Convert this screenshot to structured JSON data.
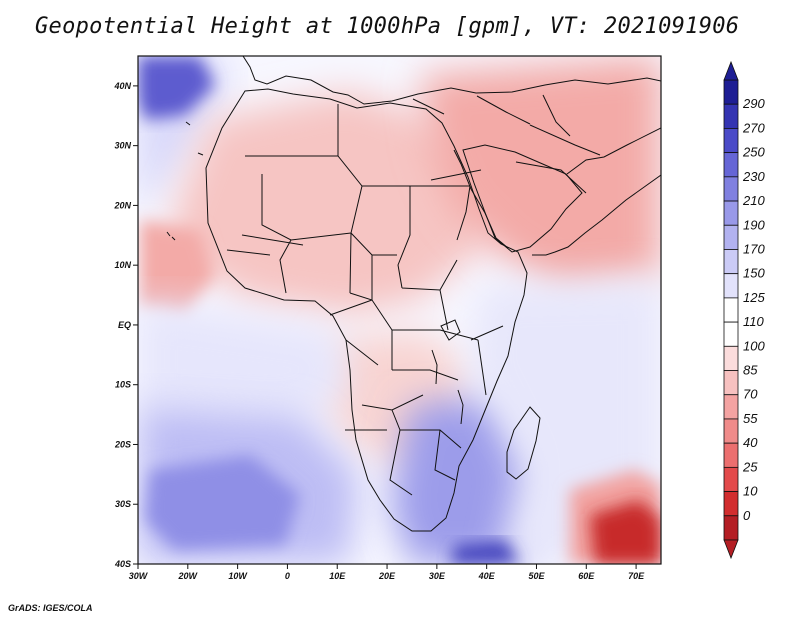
{
  "title": "Geopotential Height at 1000hPa [gpm], VT: 2021091906",
  "footer": "GrADS: IGES/COLA",
  "map": {
    "variable": "Geopotential Height",
    "level": "1000hPa",
    "units": "gpm",
    "valid_time": "2021091906",
    "lon_range": [
      -30,
      75
    ],
    "lat_range": [
      -40,
      45
    ],
    "lon_ticks": [
      {
        "value": -30,
        "label": "30W"
      },
      {
        "value": -20,
        "label": "20W"
      },
      {
        "value": -10,
        "label": "10W"
      },
      {
        "value": 0,
        "label": "0"
      },
      {
        "value": 10,
        "label": "10E"
      },
      {
        "value": 20,
        "label": "20E"
      },
      {
        "value": 30,
        "label": "30E"
      },
      {
        "value": 40,
        "label": "40E"
      },
      {
        "value": 50,
        "label": "50E"
      },
      {
        "value": 60,
        "label": "60E"
      },
      {
        "value": 70,
        "label": "70E"
      }
    ],
    "lat_ticks": [
      {
        "value": 40,
        "label": "40N"
      },
      {
        "value": 30,
        "label": "30N"
      },
      {
        "value": 20,
        "label": "20N"
      },
      {
        "value": 10,
        "label": "10N"
      },
      {
        "value": 0,
        "label": "EQ"
      },
      {
        "value": -10,
        "label": "10S"
      },
      {
        "value": -20,
        "label": "20S"
      },
      {
        "value": -30,
        "label": "30S"
      },
      {
        "value": -40,
        "label": "40S"
      }
    ]
  },
  "colorbar": {
    "labels": [
      "0",
      "10",
      "25",
      "40",
      "55",
      "70",
      "85",
      "100",
      "110",
      "125",
      "150",
      "170",
      "190",
      "210",
      "230",
      "250",
      "270",
      "290"
    ],
    "colors": [
      "#b41e24",
      "#d22d2e",
      "#e34a4b",
      "#ec6f6f",
      "#f08b8a",
      "#f4a3a2",
      "#f7c1c0",
      "#fbdcdc",
      "#ffffff",
      "#ffffff",
      "#e2e2fb",
      "#cbcbf6",
      "#b2b2f0",
      "#9999e9",
      "#8080e0",
      "#6666d6",
      "#4b4bc8",
      "#3434b2",
      "#1e1e94"
    ]
  },
  "palette": {
    "strong_low": "#b41e24",
    "low": "#ec6f6f",
    "light_low": "#f7c1c0",
    "neutral": "#ffffff",
    "light_high": "#dcdcf8",
    "high": "#8080e0",
    "strong_high": "#1e1e94"
  }
}
